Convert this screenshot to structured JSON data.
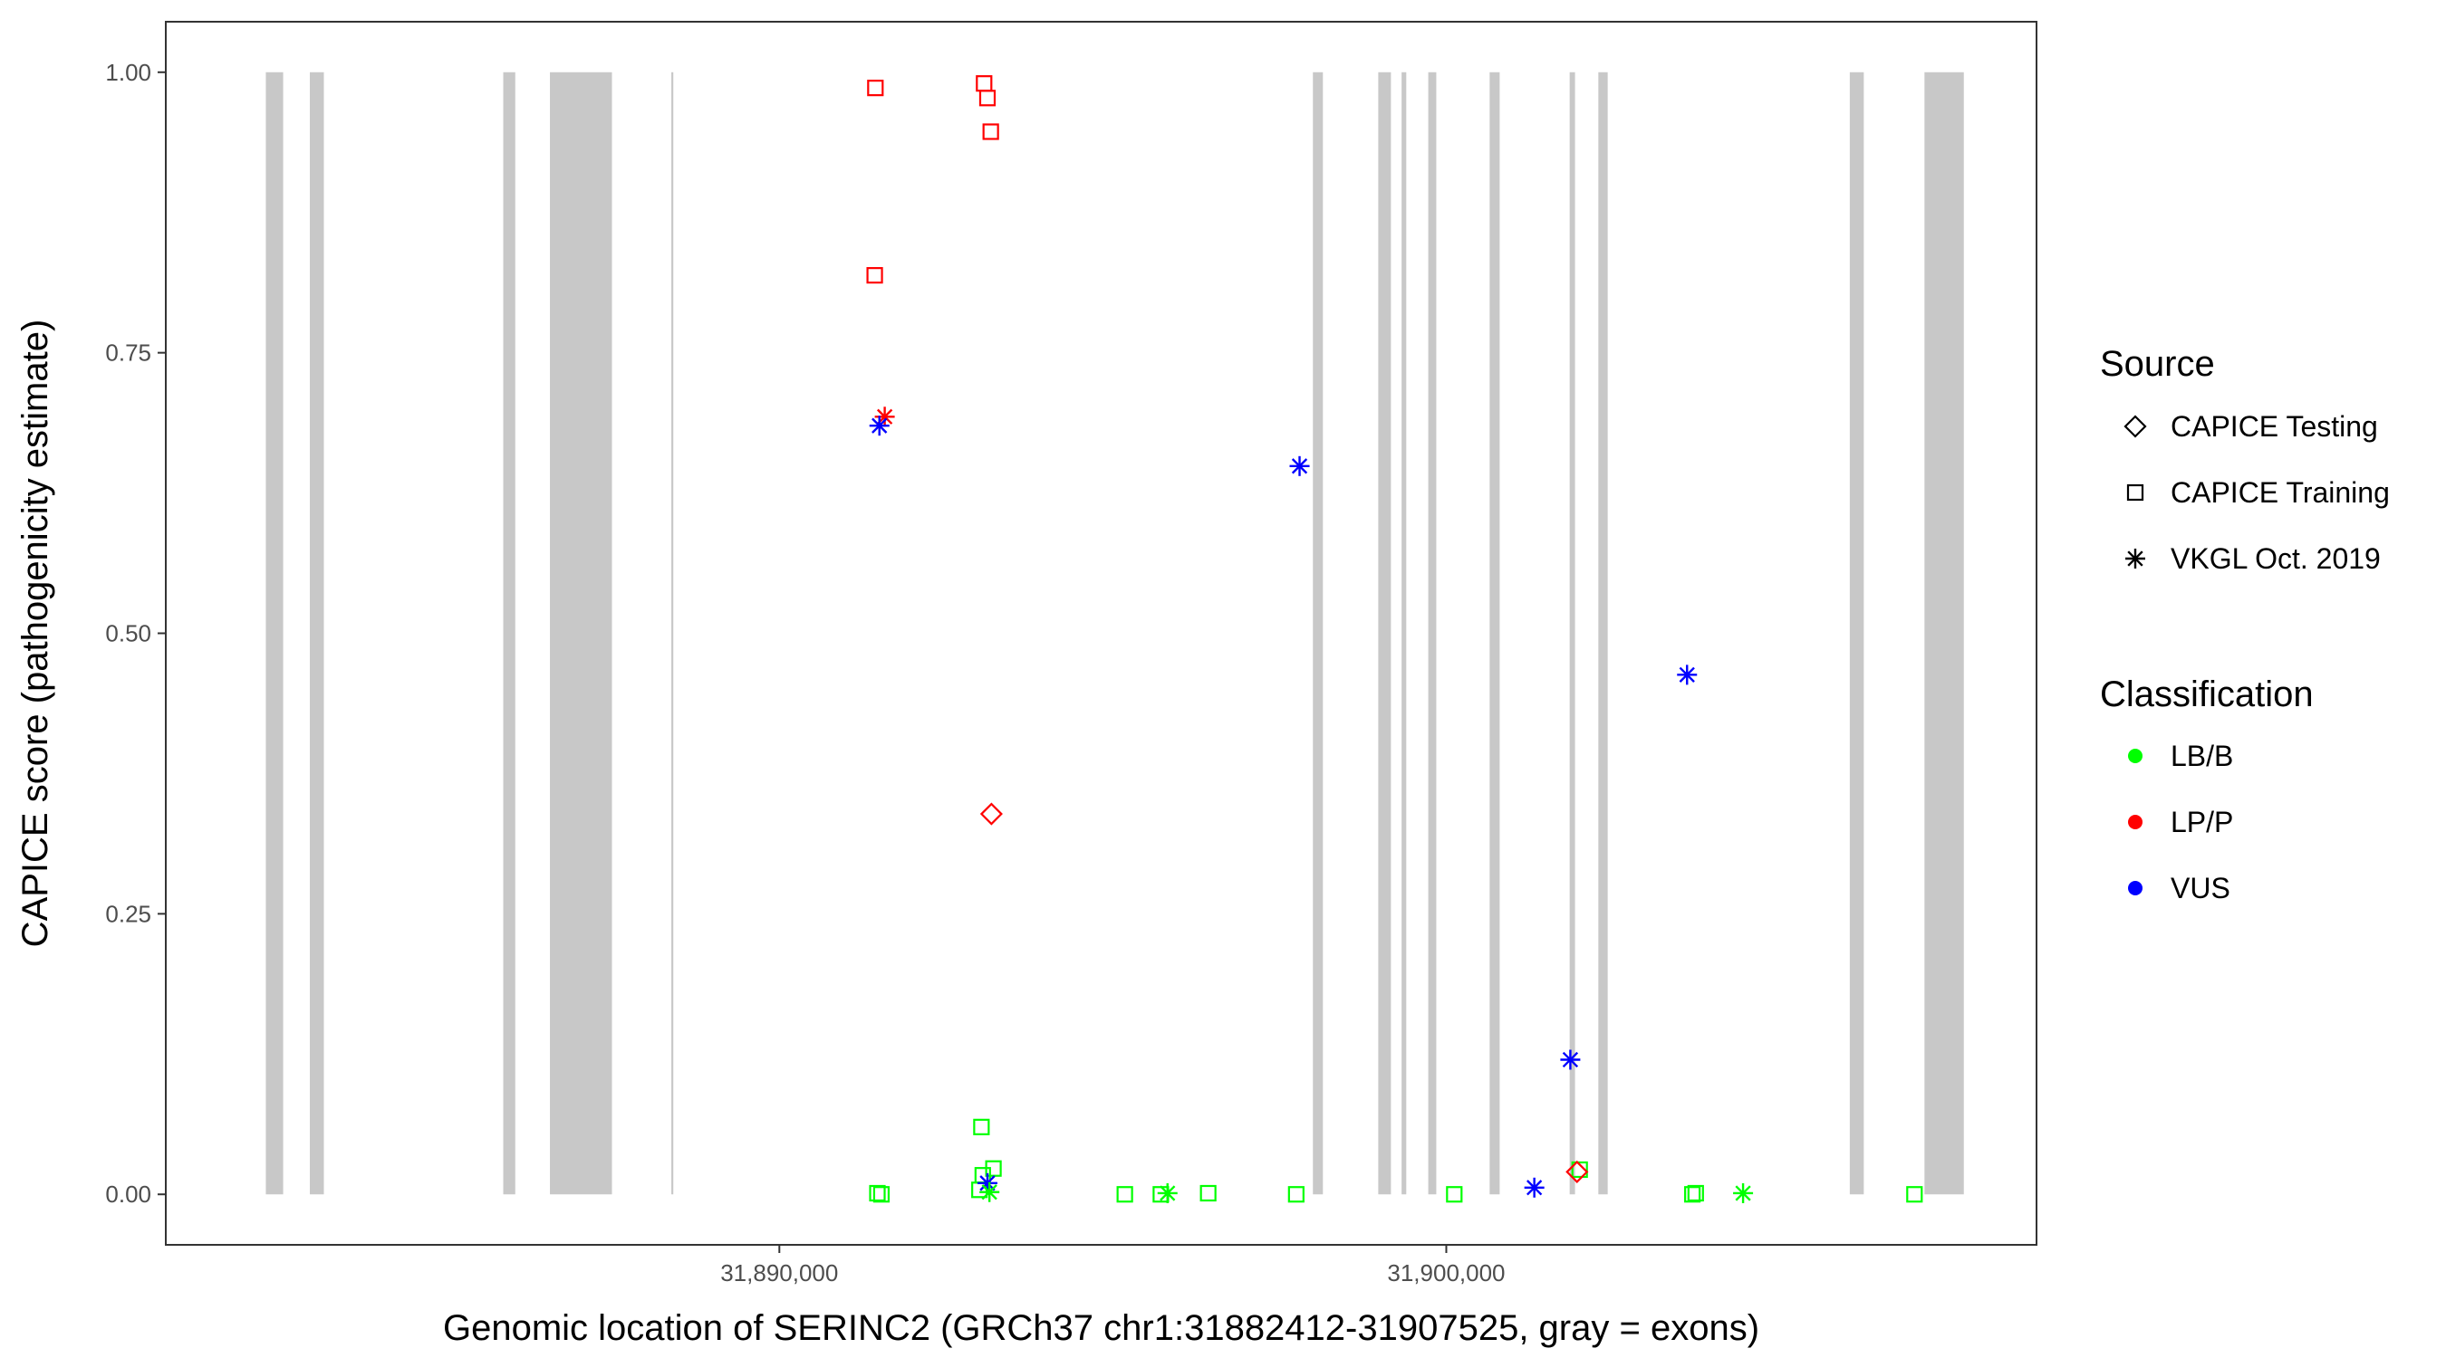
{
  "chart_data": {
    "type": "scatter",
    "xlabel": "Genomic location of SERINC2 (GRCh37 chr1:31882412-31907525, gray = exons)",
    "ylabel": "CAPICE score (pathogenicity estimate)",
    "xlim": [
      31880800,
      31908850
    ],
    "ylim": [
      -0.045,
      1.045
    ],
    "x_ticks": [
      31890000,
      31900000
    ],
    "x_tick_labels": [
      "31,890,000",
      "31,900,000"
    ],
    "y_ticks": [
      0.0,
      0.25,
      0.5,
      0.75,
      1.0
    ],
    "y_tick_labels": [
      "0.00",
      "0.25",
      "0.50",
      "0.75",
      "1.00"
    ],
    "grid": false,
    "exons": [
      [
        31882300,
        31882560
      ],
      [
        31882960,
        31883170
      ],
      [
        31885860,
        31886040
      ],
      [
        31886560,
        31887490
      ],
      [
        31888380,
        31888410
      ],
      [
        31898000,
        31898150
      ],
      [
        31898980,
        31899170
      ],
      [
        31899330,
        31899400
      ],
      [
        31899730,
        31899850
      ],
      [
        31900650,
        31900800
      ],
      [
        31901850,
        31901930
      ],
      [
        31902280,
        31902420
      ],
      [
        31906050,
        31906260
      ],
      [
        31907170,
        31907760
      ]
    ],
    "legend": {
      "position": "right",
      "source_title": "Source",
      "source_items": [
        {
          "label": "CAPICE Testing",
          "shape": "diamond"
        },
        {
          "label": "CAPICE Training",
          "shape": "square"
        },
        {
          "label": "VKGL Oct. 2019",
          "shape": "asterisk"
        }
      ],
      "class_title": "Classification",
      "class_items": [
        {
          "label": "LB/B",
          "color": "#00ff00"
        },
        {
          "label": "LP/P",
          "color": "#ff0000"
        },
        {
          "label": "VUS",
          "color": "#0000ff"
        }
      ]
    },
    "points": [
      {
        "x": 31891440,
        "y": 0.986,
        "source": "CAPICE Training",
        "classification": "LP/P"
      },
      {
        "x": 31893070,
        "y": 0.99,
        "source": "CAPICE Training",
        "classification": "LP/P"
      },
      {
        "x": 31893120,
        "y": 0.977,
        "source": "CAPICE Training",
        "classification": "LP/P"
      },
      {
        "x": 31893170,
        "y": 0.947,
        "source": "CAPICE Training",
        "classification": "LP/P"
      },
      {
        "x": 31891430,
        "y": 0.819,
        "source": "CAPICE Training",
        "classification": "LP/P"
      },
      {
        "x": 31891580,
        "y": 0.693,
        "source": "VKGL Oct. 2019",
        "classification": "LP/P"
      },
      {
        "x": 31891500,
        "y": 0.685,
        "source": "VKGL Oct. 2019",
        "classification": "VUS"
      },
      {
        "x": 31893180,
        "y": 0.339,
        "source": "CAPICE Testing",
        "classification": "LP/P"
      },
      {
        "x": 31897800,
        "y": 0.649,
        "source": "VKGL Oct. 2019",
        "classification": "VUS"
      },
      {
        "x": 31903610,
        "y": 0.463,
        "source": "VKGL Oct. 2019",
        "classification": "VUS"
      },
      {
        "x": 31901860,
        "y": 0.12,
        "source": "VKGL Oct. 2019",
        "classification": "VUS"
      },
      {
        "x": 31901320,
        "y": 0.006,
        "source": "VKGL Oct. 2019",
        "classification": "VUS"
      },
      {
        "x": 31902000,
        "y": 0.022,
        "source": "CAPICE Training",
        "classification": "LB/B"
      },
      {
        "x": 31901960,
        "y": 0.02,
        "source": "CAPICE Testing",
        "classification": "LP/P"
      },
      {
        "x": 31893030,
        "y": 0.06,
        "source": "CAPICE Training",
        "classification": "LB/B"
      },
      {
        "x": 31893210,
        "y": 0.023,
        "source": "CAPICE Training",
        "classification": "LB/B"
      },
      {
        "x": 31893050,
        "y": 0.017,
        "source": "CAPICE Training",
        "classification": "LB/B"
      },
      {
        "x": 31893000,
        "y": 0.004,
        "source": "CAPICE Training",
        "classification": "LB/B"
      },
      {
        "x": 31893120,
        "y": 0.01,
        "source": "VKGL Oct. 2019",
        "classification": "VUS"
      },
      {
        "x": 31893150,
        "y": 0.002,
        "source": "VKGL Oct. 2019",
        "classification": "LB/B"
      },
      {
        "x": 31891470,
        "y": 0.001,
        "source": "CAPICE Training",
        "classification": "LB/B"
      },
      {
        "x": 31891530,
        "y": 0.0,
        "source": "CAPICE Training",
        "classification": "LB/B"
      },
      {
        "x": 31895180,
        "y": 0.0,
        "source": "CAPICE Training",
        "classification": "LB/B"
      },
      {
        "x": 31895720,
        "y": 0.0,
        "source": "CAPICE Training",
        "classification": "LB/B"
      },
      {
        "x": 31895820,
        "y": 0.001,
        "source": "VKGL Oct. 2019",
        "classification": "LB/B"
      },
      {
        "x": 31896430,
        "y": 0.001,
        "source": "CAPICE Training",
        "classification": "LB/B"
      },
      {
        "x": 31897750,
        "y": 0.0,
        "source": "CAPICE Training",
        "classification": "LB/B"
      },
      {
        "x": 31900120,
        "y": 0.0,
        "source": "CAPICE Training",
        "classification": "LB/B"
      },
      {
        "x": 31903690,
        "y": 0.0,
        "source": "CAPICE Training",
        "classification": "LB/B"
      },
      {
        "x": 31903740,
        "y": 0.001,
        "source": "CAPICE Training",
        "classification": "LB/B"
      },
      {
        "x": 31904450,
        "y": 0.001,
        "source": "VKGL Oct. 2019",
        "classification": "LB/B"
      },
      {
        "x": 31907020,
        "y": 0.0,
        "source": "CAPICE Training",
        "classification": "LB/B"
      }
    ]
  }
}
